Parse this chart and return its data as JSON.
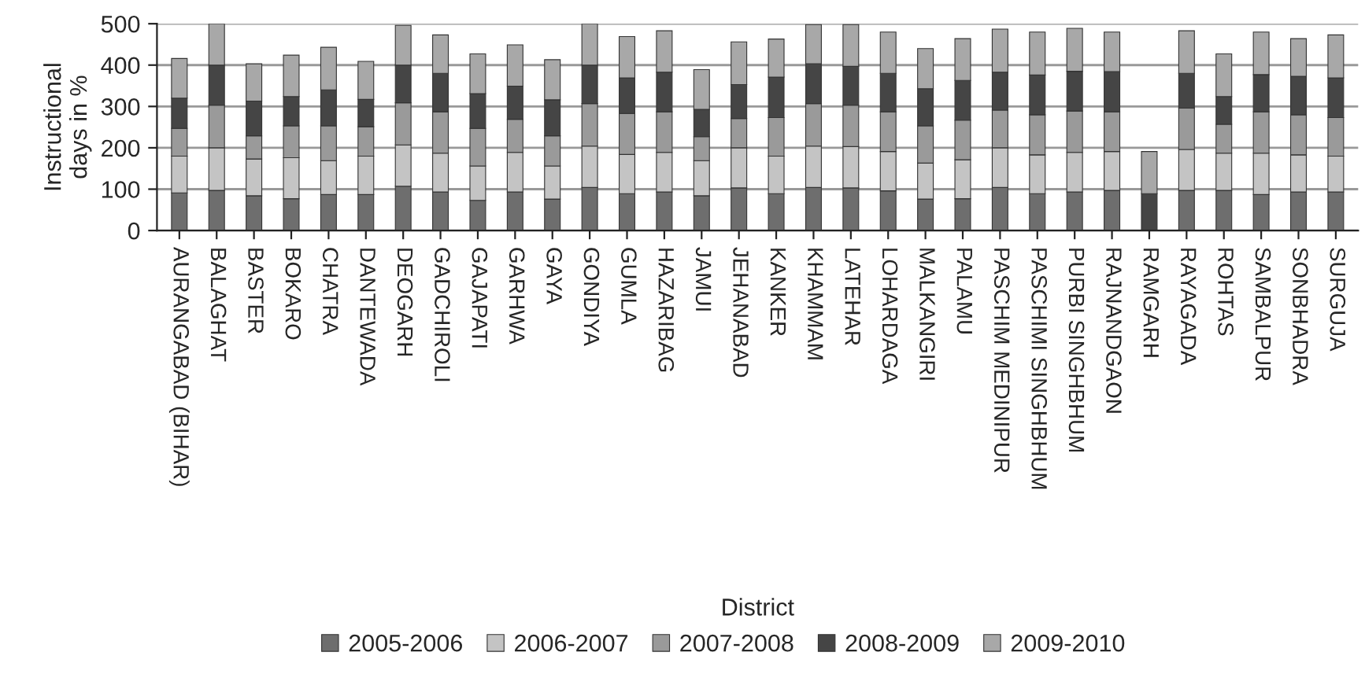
{
  "chart_data": {
    "type": "bar",
    "stacked": true,
    "xlabel": "District",
    "ylabel": "Instructional\ndays in %",
    "categories": [
      "AURANGABAD (BIHAR)",
      "BALAGHAT",
      "BASTER",
      "BOKARO",
      "CHATRA",
      "DANTEWADA",
      "DEOGARH",
      "GADCHIROLI",
      "GAJAPATI",
      "GARHWA",
      "GAYA",
      "GONDIYA",
      "GUMLA",
      "HAZARIBAG",
      "JAMUI",
      "JEHANABAD",
      "KANKER",
      "KHAMMAM",
      "LATEHAR",
      "LOHARDAGA",
      "MALKANGIRI",
      "PALAMU",
      "PASCHIM MEDINIPUR",
      "PASCHIMI SINGHBHUM",
      "PURBI SINGHBHUM",
      "RAJNANDGAON",
      "RAMGARH",
      "RAYAGADA",
      "ROHTAS",
      "SAMBALPUR",
      "SONBHADRA",
      "SURGUJA"
    ],
    "series": [
      {
        "name": "2005-2006",
        "color": "#6e6e6e",
        "values": [
          91,
          97,
          84,
          77,
          87,
          87,
          107,
          93,
          73,
          93,
          76,
          104,
          89,
          93,
          84,
          103,
          89,
          104,
          103,
          96,
          76,
          77,
          104,
          89,
          93,
          97,
          0,
          97,
          97,
          87,
          93,
          93
        ]
      },
      {
        "name": "2006-2007",
        "color": "#c4c4c4",
        "values": [
          89,
          103,
          89,
          99,
          82,
          93,
          100,
          94,
          83,
          96,
          80,
          100,
          95,
          96,
          85,
          97,
          91,
          100,
          100,
          95,
          87,
          94,
          96,
          94,
          96,
          94,
          0,
          99,
          90,
          100,
          90,
          87
        ]
      },
      {
        "name": "2007-2008",
        "color": "#9a9a9a",
        "values": [
          67,
          103,
          56,
          77,
          84,
          71,
          102,
          100,
          91,
          80,
          73,
          103,
          99,
          98,
          58,
          71,
          93,
          103,
          100,
          96,
          90,
          96,
          91,
          97,
          100,
          96,
          0,
          100,
          70,
          100,
          97,
          93
        ]
      },
      {
        "name": "2008-2009",
        "color": "#454545",
        "values": [
          73,
          97,
          84,
          71,
          87,
          66,
          91,
          93,
          84,
          80,
          87,
          93,
          86,
          96,
          66,
          82,
          98,
          96,
          94,
          93,
          90,
          96,
          92,
          96,
          96,
          97,
          89,
          84,
          67,
          90,
          93,
          96
        ]
      },
      {
        "name": "2009-2010",
        "color": "#a8a8a8",
        "values": [
          96,
          100,
          90,
          100,
          103,
          92,
          96,
          93,
          96,
          100,
          97,
          100,
          100,
          100,
          96,
          103,
          92,
          95,
          101,
          100,
          97,
          101,
          104,
          104,
          104,
          96,
          102,
          103,
          103,
          103,
          91,
          104
        ]
      }
    ],
    "ylim": [
      0,
      500
    ],
    "yticks": [
      0,
      100,
      200,
      300,
      400,
      500
    ],
    "grid": "y",
    "legend": "bottom"
  }
}
